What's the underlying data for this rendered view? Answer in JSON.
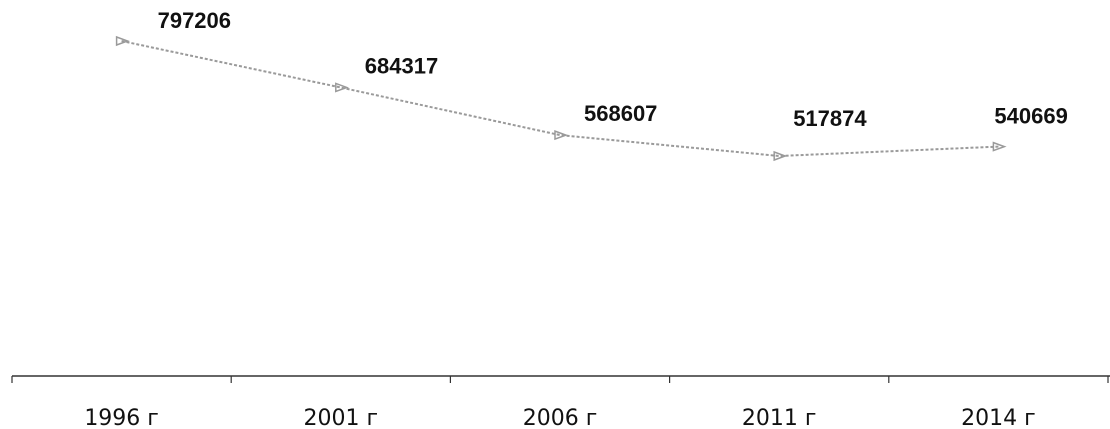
{
  "chart_data": {
    "type": "line",
    "categories": [
      "1996 г",
      "2001 г",
      "2006 г",
      "2011 г",
      "2014 г"
    ],
    "series": [
      {
        "values": [
          797206,
          684317,
          568607,
          517874,
          540669
        ]
      }
    ],
    "data_labels": [
      "797206",
      "684317",
      "568607",
      "517874",
      "540669"
    ],
    "title": "",
    "xlabel": "",
    "ylabel": "",
    "grid": false,
    "legend": "none",
    "colors": {
      "line": "#9a9a9a",
      "text": "#111111",
      "axis": "#333333"
    }
  }
}
